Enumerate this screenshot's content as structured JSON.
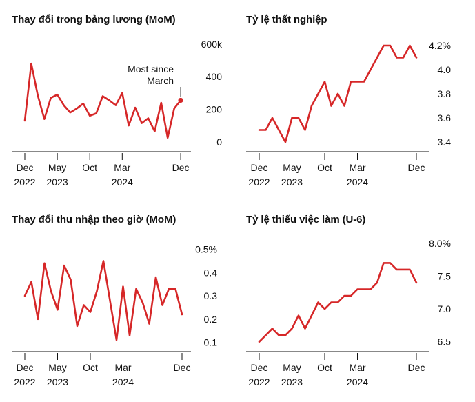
{
  "colors": {
    "line": "#d62728",
    "axis": "#111111",
    "text": "#111111"
  },
  "chart_data": [
    {
      "type": "line",
      "title": "Thay đổi trong bảng lương (MoM)",
      "ytick_labels": [
        "600k",
        "400",
        "200",
        "0"
      ],
      "ytick_values": [
        600,
        400,
        200,
        0
      ],
      "ylim": [
        -60,
        650
      ],
      "xtick_labels": [
        {
          "month": "Dec",
          "year": "2022",
          "index": 0
        },
        {
          "month": "May",
          "year": "2023",
          "index": 5
        },
        {
          "month": "Oct",
          "year": "",
          "index": 10
        },
        {
          "month": "Mar",
          "year": "2024",
          "index": 15
        },
        {
          "month": "Dec",
          "year": "",
          "index": 24
        }
      ],
      "values": [
        130,
        480,
        285,
        140,
        270,
        290,
        225,
        180,
        205,
        235,
        160,
        175,
        280,
        255,
        225,
        300,
        100,
        210,
        115,
        145,
        65,
        240,
        25,
        205,
        255
      ],
      "annotation": {
        "line1": "Most since",
        "line2": "March",
        "index": 24
      },
      "grid": false
    },
    {
      "type": "line",
      "title": "Tỷ lệ thất nghiệp",
      "ytick_labels": [
        "4.2%",
        "4.0",
        "3.8",
        "3.6",
        "3.4"
      ],
      "ytick_values": [
        4.2,
        4.0,
        3.8,
        3.6,
        3.4
      ],
      "ylim": [
        3.32,
        4.28
      ],
      "xtick_labels": [
        {
          "month": "Dec",
          "year": "2022",
          "index": 0
        },
        {
          "month": "May",
          "year": "2023",
          "index": 5
        },
        {
          "month": "Oct",
          "year": "",
          "index": 10
        },
        {
          "month": "Mar",
          "year": "2024",
          "index": 15
        },
        {
          "month": "Dec",
          "year": "",
          "index": 24
        }
      ],
      "values": [
        3.5,
        3.5,
        3.6,
        3.5,
        3.4,
        3.6,
        3.6,
        3.5,
        3.7,
        3.8,
        3.9,
        3.7,
        3.8,
        3.7,
        3.9,
        3.9,
        3.9,
        4.0,
        4.1,
        4.2,
        4.2,
        4.1,
        4.1,
        4.2,
        4.1
      ],
      "grid": false
    },
    {
      "type": "line",
      "title": "Thay đổi thu nhập theo giờ (MoM)",
      "ytick_labels": [
        "0.5%",
        "0.4",
        "0.3",
        "0.2",
        "0.1"
      ],
      "ytick_values": [
        0.5,
        0.4,
        0.3,
        0.2,
        0.1
      ],
      "ylim": [
        0.06,
        0.54
      ],
      "xtick_labels": [
        {
          "month": "Dec",
          "year": "2022",
          "index": 0
        },
        {
          "month": "May",
          "year": "2023",
          "index": 5
        },
        {
          "month": "Oct",
          "year": "",
          "index": 10
        },
        {
          "month": "Mar",
          "year": "2024",
          "index": 15
        },
        {
          "month": "Dec",
          "year": "",
          "index": 24
        }
      ],
      "values": [
        0.3,
        0.36,
        0.2,
        0.44,
        0.32,
        0.24,
        0.43,
        0.37,
        0.17,
        0.26,
        0.23,
        0.32,
        0.45,
        0.28,
        0.11,
        0.34,
        0.13,
        0.33,
        0.27,
        0.18,
        0.38,
        0.26,
        0.33,
        0.33,
        0.22
      ],
      "grid": false
    },
    {
      "type": "line",
      "title": "Tỷ lệ thiếu việc làm (U-6)",
      "ytick_labels": [
        "8.0%",
        "7.5",
        "7.0",
        "6.5"
      ],
      "ytick_values": [
        8.0,
        7.5,
        7.0,
        6.5
      ],
      "ylim": [
        6.35,
        8.05
      ],
      "xtick_labels": [
        {
          "month": "Dec",
          "year": "2022",
          "index": 0
        },
        {
          "month": "May",
          "year": "2023",
          "index": 5
        },
        {
          "month": "Oct",
          "year": "",
          "index": 10
        },
        {
          "month": "Mar",
          "year": "2024",
          "index": 15
        },
        {
          "month": "Dec",
          "year": "",
          "index": 24
        }
      ],
      "values": [
        6.5,
        6.6,
        6.7,
        6.6,
        6.6,
        6.7,
        6.9,
        6.7,
        6.9,
        7.1,
        7.0,
        7.1,
        7.1,
        7.2,
        7.2,
        7.3,
        7.3,
        7.3,
        7.4,
        7.7,
        7.7,
        7.6,
        7.6,
        7.6,
        7.4
      ],
      "grid": false
    }
  ]
}
